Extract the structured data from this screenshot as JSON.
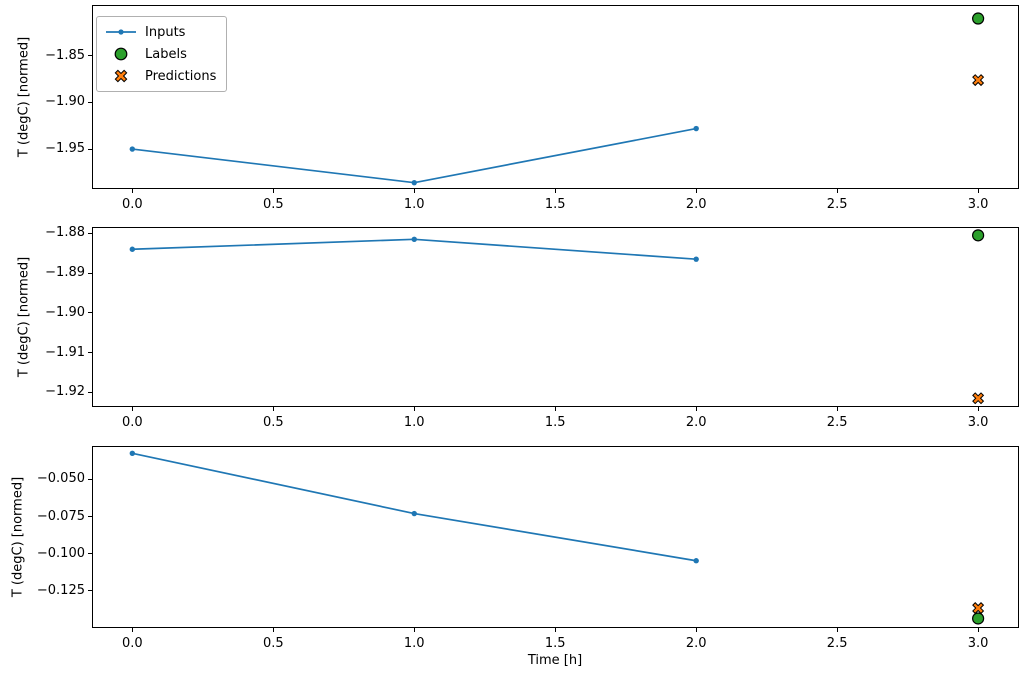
{
  "figure": {
    "background": "#ffffff"
  },
  "colors": {
    "inputs": "#1f77b4",
    "labels": "#2ca02c",
    "predictions": "#ff7f0e",
    "marker_edge": "#000000",
    "axis": "#000000",
    "legend_border": "#b0b0b0"
  },
  "legend": {
    "items": [
      {
        "label": "Inputs",
        "icon": "line-dot-icon",
        "color": "#1f77b4"
      },
      {
        "label": "Labels",
        "icon": "circle-icon",
        "color": "#2ca02c"
      },
      {
        "label": "Predictions",
        "icon": "x-icon",
        "color": "#ff7f0e"
      }
    ]
  },
  "chart_data": [
    {
      "type": "line",
      "title": "",
      "xlabel": "",
      "ylabel": "T (degC) [normed]",
      "xlim": [
        -0.143,
        3.145
      ],
      "ylim": [
        -1.9928,
        -1.7955
      ],
      "grid": false,
      "legend_position": "upper-left",
      "x_ticks": {
        "values": [
          0.0,
          0.5,
          1.0,
          1.5,
          2.0,
          2.5,
          3.0
        ],
        "labels": [
          "0.0",
          "0.5",
          "1.0",
          "1.5",
          "2.0",
          "2.5",
          "3.0"
        ]
      },
      "y_ticks": {
        "values": [
          -1.95,
          -1.9,
          -1.85
        ],
        "labels": [
          "−1.95",
          "−1.90",
          "−1.85"
        ]
      },
      "series": [
        {
          "name": "Inputs",
          "marker": "line+dot",
          "color": "#1f77b4",
          "x": [
            0,
            1,
            2
          ],
          "y": [
            -1.95,
            -1.986,
            -1.928
          ]
        },
        {
          "name": "Labels",
          "marker": "circle",
          "color": "#2ca02c",
          "edge_color": "#000000",
          "x": [
            3
          ],
          "y": [
            -1.81
          ]
        },
        {
          "name": "Predictions",
          "marker": "X",
          "color": "#ff7f0e",
          "edge_color": "#000000",
          "x": [
            3
          ],
          "y": [
            -1.876
          ]
        }
      ]
    },
    {
      "type": "line",
      "title": "",
      "xlabel": "",
      "ylabel": "T (degC) [normed]",
      "xlim": [
        -0.143,
        3.145
      ],
      "ylim": [
        -1.9237,
        -1.8784
      ],
      "grid": false,
      "x_ticks": {
        "values": [
          0.0,
          0.5,
          1.0,
          1.5,
          2.0,
          2.5,
          3.0
        ],
        "labels": [
          "0.0",
          "0.5",
          "1.0",
          "1.5",
          "2.0",
          "2.5",
          "3.0"
        ]
      },
      "y_ticks": {
        "values": [
          -1.92,
          -1.91,
          -1.9,
          -1.89,
          -1.88
        ],
        "labels": [
          "−1.92",
          "−1.91",
          "−1.90",
          "−1.89",
          "−1.88"
        ]
      },
      "series": [
        {
          "name": "Inputs",
          "marker": "line+dot",
          "color": "#1f77b4",
          "x": [
            0,
            1,
            2
          ],
          "y": [
            -1.884,
            -1.8815,
            -1.8865
          ]
        },
        {
          "name": "Labels",
          "marker": "circle",
          "color": "#2ca02c",
          "edge_color": "#000000",
          "x": [
            3
          ],
          "y": [
            -1.8805
          ]
        },
        {
          "name": "Predictions",
          "marker": "X",
          "color": "#ff7f0e",
          "edge_color": "#000000",
          "x": [
            3
          ],
          "y": [
            -1.9215
          ]
        }
      ]
    },
    {
      "type": "line",
      "title": "",
      "xlabel": "Time [h]",
      "ylabel": "T (degC) [normed]",
      "xlim": [
        -0.143,
        3.145
      ],
      "ylim": [
        -0.1499,
        -0.0276
      ],
      "grid": false,
      "x_ticks": {
        "values": [
          0.0,
          0.5,
          1.0,
          1.5,
          2.0,
          2.5,
          3.0
        ],
        "labels": [
          "0.0",
          "0.5",
          "1.0",
          "1.5",
          "2.0",
          "2.5",
          "3.0"
        ]
      },
      "y_ticks": {
        "values": [
          -0.125,
          -0.1,
          -0.075,
          -0.05
        ],
        "labels": [
          "−0.125",
          "−0.100",
          "−0.075",
          "−0.050"
        ]
      },
      "series": [
        {
          "name": "Inputs",
          "marker": "line+dot",
          "color": "#1f77b4",
          "x": [
            0,
            1,
            2
          ],
          "y": [
            -0.0325,
            -0.073,
            -0.1047
          ]
        },
        {
          "name": "Labels",
          "marker": "circle",
          "color": "#2ca02c",
          "edge_color": "#000000",
          "x": [
            3
          ],
          "y": [
            -0.1435
          ]
        },
        {
          "name": "Predictions",
          "marker": "X",
          "color": "#ff7f0e",
          "edge_color": "#000000",
          "x": [
            3
          ],
          "y": [
            -0.1365
          ]
        }
      ]
    }
  ]
}
